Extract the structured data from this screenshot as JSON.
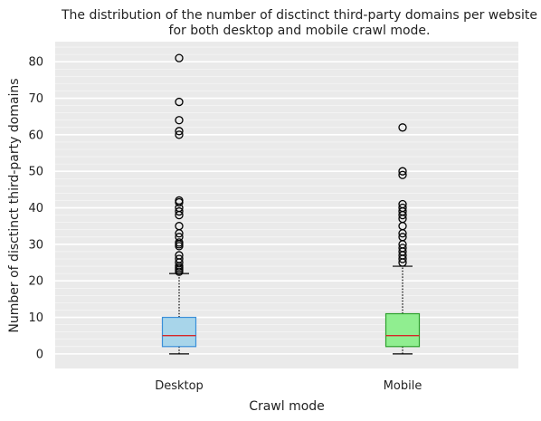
{
  "chart_data": {
    "type": "boxplot",
    "title_lines": [
      "The distribution of the number of disctinct third-party domains per website",
      "for both desktop and mobile crawl mode."
    ],
    "xlabel": "Crawl mode",
    "ylabel": "Number of disctinct third-party domains",
    "ylim": [
      -4,
      85.5
    ],
    "yticks": [
      0,
      10,
      20,
      30,
      40,
      50,
      60,
      70,
      80
    ],
    "grid": true,
    "categories": [
      "Desktop",
      "Mobile"
    ],
    "boxes": [
      {
        "label": "Desktop",
        "whisker_low": 0,
        "q1": 2,
        "median": 5,
        "q3": 10,
        "whisker_high": 22,
        "fill": "#a8d5ea",
        "edge": "#3a8fd9",
        "outliers": [
          22.5,
          23,
          23.5,
          24,
          25,
          26,
          27,
          29.5,
          30,
          30.5,
          32,
          33,
          35,
          38,
          39,
          40,
          41.5,
          42,
          60,
          61,
          64,
          69,
          81
        ]
      },
      {
        "label": "Mobile",
        "whisker_low": 0,
        "q1": 2,
        "median": 5,
        "q3": 11,
        "whisker_high": 24,
        "fill": "#90ee90",
        "edge": "#2ca02c",
        "outliers": [
          25,
          26,
          27,
          28,
          29,
          30,
          32,
          33,
          35,
          37,
          38,
          39,
          40,
          41,
          49,
          50,
          62
        ]
      }
    ],
    "colors": {
      "background": "#eaeaea",
      "grid": "#ffffff",
      "median": "#d62728",
      "whisker": "#000000"
    }
  }
}
